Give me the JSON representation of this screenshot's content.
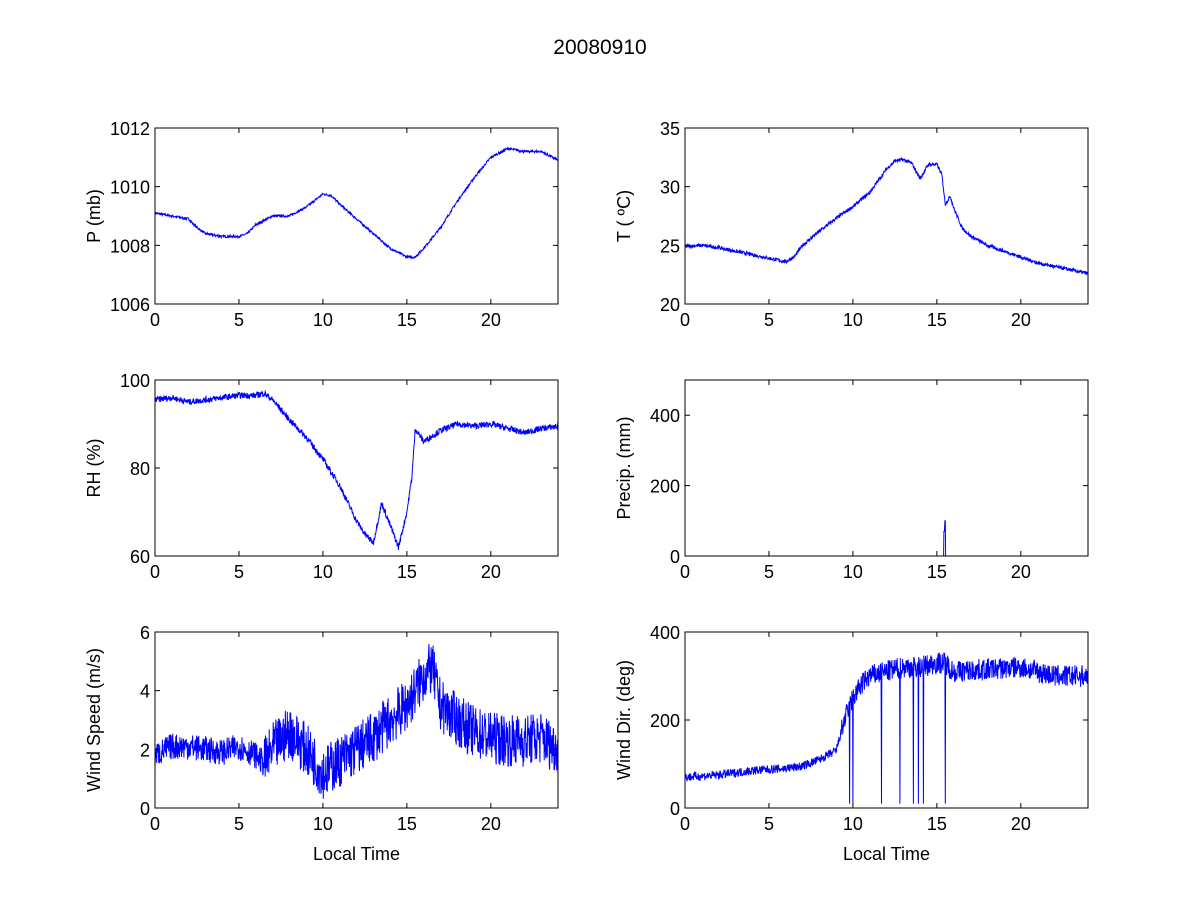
{
  "chart_data": {
    "type": "line",
    "title": "20080910",
    "line_color": "#0000ff",
    "panels": [
      {
        "id": "pressure",
        "ylabel": "P (mb)",
        "xlabel": "",
        "xlim": [
          0,
          24
        ],
        "ylim": [
          1006,
          1012
        ],
        "xticks": [
          0,
          5,
          10,
          15,
          20
        ],
        "yticks": [
          1006,
          1008,
          1010,
          1012
        ],
        "noise": 0.04,
        "x": [
          0,
          1,
          2,
          2.5,
          3,
          4,
          5,
          5.5,
          6,
          7,
          8,
          9,
          10,
          10.5,
          11,
          12,
          13,
          14,
          15,
          15.5,
          16,
          17,
          18,
          19,
          20,
          21,
          22,
          23,
          24
        ],
        "y": [
          1009.1,
          1009.0,
          1008.9,
          1008.6,
          1008.4,
          1008.3,
          1008.3,
          1008.4,
          1008.7,
          1009.0,
          1009.0,
          1009.3,
          1009.75,
          1009.7,
          1009.4,
          1008.9,
          1008.4,
          1007.9,
          1007.6,
          1007.6,
          1007.9,
          1008.6,
          1009.5,
          1010.3,
          1011.0,
          1011.3,
          1011.2,
          1011.2,
          1010.9
        ]
      },
      {
        "id": "temperature",
        "ylabel": "T ( ºC)",
        "xlabel": "",
        "xlim": [
          0,
          24
        ],
        "ylim": [
          20,
          35
        ],
        "xticks": [
          0,
          5,
          10,
          15,
          20
        ],
        "yticks": [
          20,
          25,
          30,
          35
        ],
        "noise": 0.15,
        "x": [
          0,
          1,
          2,
          3,
          4,
          5,
          6,
          6.5,
          7,
          8,
          9,
          10,
          11,
          11.5,
          12,
          12.5,
          13,
          13.5,
          14,
          14.5,
          15,
          15.3,
          15.5,
          15.8,
          16,
          16.5,
          17,
          18,
          19,
          20,
          21,
          22,
          23,
          24
        ],
        "y": [
          24.9,
          25.0,
          24.8,
          24.5,
          24.2,
          23.9,
          23.6,
          24.0,
          25.0,
          26.2,
          27.3,
          28.3,
          29.5,
          30.5,
          31.5,
          32.2,
          32.3,
          32.0,
          30.7,
          31.9,
          31.9,
          31.0,
          28.5,
          29.2,
          28.2,
          26.5,
          25.8,
          25.0,
          24.5,
          24.0,
          23.5,
          23.2,
          22.9,
          22.6
        ]
      },
      {
        "id": "rh",
        "ylabel": "RH (%)",
        "xlabel": "",
        "xlim": [
          0,
          24
        ],
        "ylim": [
          60,
          100
        ],
        "xticks": [
          0,
          5,
          10,
          15,
          20
        ],
        "yticks": [
          60,
          80,
          100
        ],
        "noise": 0.7,
        "x": [
          0,
          1,
          2,
          3,
          4,
          5,
          6,
          6.5,
          7,
          8,
          9,
          10,
          11,
          12,
          12.5,
          13,
          13.5,
          14,
          14.5,
          15,
          15.3,
          15.5,
          16,
          17,
          18,
          19,
          20,
          21,
          22,
          23,
          24
        ],
        "y": [
          95.5,
          96,
          95,
          95.5,
          96,
          96.5,
          96.5,
          97,
          95.5,
          91,
          87,
          82,
          76,
          68,
          65,
          63,
          72,
          67,
          62,
          70,
          78,
          89,
          86,
          88.5,
          90,
          89.5,
          90,
          89,
          88,
          89,
          89.5
        ]
      },
      {
        "id": "precip",
        "ylabel": "Precip. (mm)",
        "xlabel": "",
        "xlim": [
          0,
          24
        ],
        "ylim": [
          0,
          500
        ],
        "xticks": [
          0,
          5,
          10,
          15,
          20
        ],
        "yticks": [
          0,
          200,
          400
        ],
        "noise": 0,
        "x": [
          0,
          15.4,
          15.42,
          15.45,
          15.48,
          15.5,
          15.52,
          24
        ],
        "y": [
          0,
          0,
          70,
          70,
          100,
          100,
          0,
          0
        ]
      },
      {
        "id": "wind_speed",
        "ylabel": "Wind Speed (m/s)",
        "xlabel": "Local Time",
        "xlim": [
          0,
          24
        ],
        "ylim": [
          0,
          6
        ],
        "xticks": [
          0,
          5,
          10,
          15,
          20
        ],
        "yticks": [
          0,
          2,
          4,
          6
        ],
        "noise": 0.45,
        "x": [
          0,
          1,
          2,
          3,
          4,
          5,
          6,
          6.5,
          7,
          8,
          9,
          10,
          11,
          12,
          13,
          14,
          15,
          16,
          16.5,
          17,
          18,
          19,
          20,
          21,
          22,
          23,
          24
        ],
        "y": [
          1.8,
          2.1,
          2.1,
          2.0,
          1.9,
          2.1,
          1.8,
          1.5,
          2.0,
          2.6,
          2.0,
          1.2,
          1.6,
          2.0,
          2.4,
          3.0,
          3.5,
          4.5,
          4.8,
          3.5,
          3.0,
          2.6,
          2.4,
          2.3,
          2.3,
          2.4,
          2.0
        ]
      },
      {
        "id": "wind_dir",
        "ylabel": "Wind Dir. (deg)",
        "xlabel": "Local Time",
        "xlim": [
          0,
          24
        ],
        "ylim": [
          0,
          400
        ],
        "xticks": [
          0,
          5,
          10,
          15,
          20
        ],
        "yticks": [
          0,
          200,
          400
        ],
        "noise": 10,
        "x": [
          0,
          2,
          4,
          6,
          7,
          8,
          9,
          9.5,
          10,
          10.5,
          11,
          12,
          13,
          14,
          15,
          15.5,
          16,
          18,
          20,
          21,
          22,
          24
        ],
        "y": [
          70,
          75,
          85,
          90,
          95,
          110,
          130,
          200,
          250,
          280,
          300,
          310,
          320,
          320,
          330,
          330,
          310,
          315,
          320,
          310,
          300,
          300
        ],
        "drops": [
          9.8,
          10.0,
          11.7,
          12.8,
          13.6,
          13.9,
          14.2,
          15.5
        ]
      }
    ]
  }
}
